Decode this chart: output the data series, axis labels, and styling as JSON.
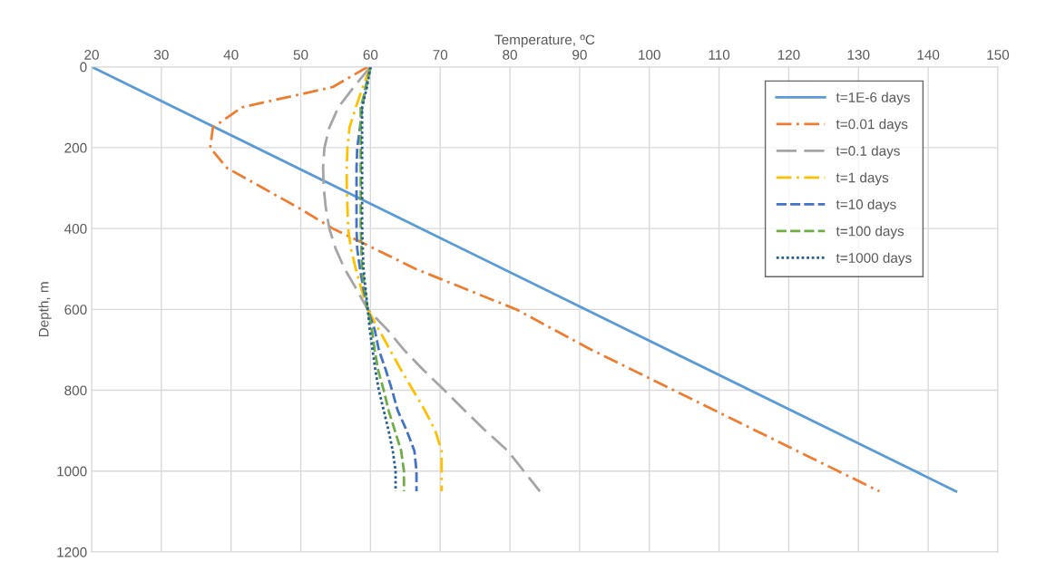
{
  "chart_data": {
    "type": "line",
    "xlabel": "Temperature, ºC",
    "ylabel": "Depth, m",
    "xlim": [
      20,
      150
    ],
    "xticks": [
      20,
      30,
      40,
      50,
      60,
      70,
      80,
      90,
      100,
      110,
      120,
      130,
      140,
      150
    ],
    "ylim": [
      1200,
      0
    ],
    "yticks": [
      0,
      200,
      400,
      600,
      800,
      1000,
      1200
    ],
    "grid": true,
    "legend": "top right",
    "marker": "none",
    "series": [
      {
        "name": "t=1E-6 days",
        "color": "#5b9bd5",
        "line_style": "solid",
        "x": [
          20,
          144
        ],
        "values": [
          0,
          1050
        ]
      },
      {
        "name": "t=0.01 days",
        "color": "#ed7d31",
        "line_style": "dashdot",
        "x": [
          59.6,
          54.6,
          41.6,
          37.4,
          37,
          39.4,
          44.6,
          49.8,
          54.6,
          60.6,
          66.5,
          80.9,
          91.7,
          103.5,
          115.3,
          127.1,
          133
        ],
        "values": [
          0,
          50,
          100,
          150,
          200,
          250,
          300,
          350,
          400,
          450,
          500,
          600,
          700,
          800,
          900,
          1000,
          1050
        ]
      },
      {
        "name": "t=0.1 days",
        "color": "#a5a5a5",
        "line_style": "longdash",
        "x": [
          60,
          57.6,
          55.4,
          54.1,
          53.4,
          53.2,
          53.3,
          53.6,
          54.1,
          55,
          56.3,
          58,
          59.6,
          62.4,
          64.8,
          67.6,
          70.6,
          73.5,
          76.5,
          79.7,
          82,
          84.3
        ],
        "values": [
          0,
          50,
          100,
          150,
          200,
          250,
          300,
          350,
          400,
          450,
          500,
          550,
          600,
          650,
          700,
          750,
          800,
          850,
          900,
          950,
          1000,
          1050
        ]
      },
      {
        "name": "t=1 days",
        "color": "#ffc000",
        "line_style": "dashdot",
        "x": [
          60,
          58.9,
          57.9,
          57,
          56.7,
          56.6,
          56.6,
          56.7,
          56.8,
          57.2,
          57.9,
          58.7,
          59.6,
          61.2,
          62.8,
          64.4,
          66.1,
          67.8,
          69.3,
          70.2,
          70.2,
          70.2
        ],
        "values": [
          0,
          50,
          100,
          150,
          200,
          250,
          300,
          350,
          400,
          450,
          500,
          550,
          600,
          650,
          700,
          750,
          800,
          850,
          900,
          950,
          1000,
          1050
        ]
      },
      {
        "name": "t=10 days",
        "color": "#4472c4",
        "line_style": "dashed",
        "x": [
          60,
          59.3,
          58.8,
          58.5,
          58.1,
          58,
          58,
          58,
          58,
          58.1,
          58.5,
          59,
          59.6,
          60.6,
          61.2,
          62.2,
          63.1,
          63.9,
          65.2,
          66.3,
          66.6,
          66.6
        ],
        "values": [
          0,
          50,
          100,
          150,
          200,
          250,
          300,
          350,
          400,
          450,
          500,
          550,
          600,
          650,
          700,
          750,
          800,
          850,
          900,
          950,
          1000,
          1050
        ]
      },
      {
        "name": "t=100 days",
        "color": "#70ad47",
        "line_style": "dashed",
        "x": [
          60,
          59.4,
          58.6,
          58.6,
          58.6,
          58.6,
          58.6,
          58.6,
          58.6,
          58.7,
          58.8,
          59.2,
          59.6,
          60.2,
          60.6,
          61.1,
          61.9,
          62.6,
          63.5,
          64.4,
          64.8,
          64.8
        ],
        "values": [
          0,
          50,
          100,
          150,
          200,
          250,
          300,
          350,
          400,
          450,
          500,
          550,
          600,
          650,
          700,
          750,
          800,
          850,
          900,
          950,
          1000,
          1050
        ]
      },
      {
        "name": "t=1000 days",
        "color": "#255e91",
        "line_style": "dotted",
        "x": [
          60,
          59.5,
          58.8,
          58.8,
          58.8,
          58.8,
          58.8,
          58.8,
          58.8,
          58.9,
          59,
          59.3,
          59.6,
          59.9,
          60.3,
          60.7,
          61.2,
          61.9,
          62.6,
          63.2,
          63.6,
          63.6
        ],
        "values": [
          0,
          50,
          100,
          150,
          200,
          250,
          300,
          350,
          400,
          450,
          500,
          550,
          600,
          650,
          700,
          750,
          800,
          850,
          900,
          950,
          1000,
          1050
        ]
      }
    ]
  }
}
